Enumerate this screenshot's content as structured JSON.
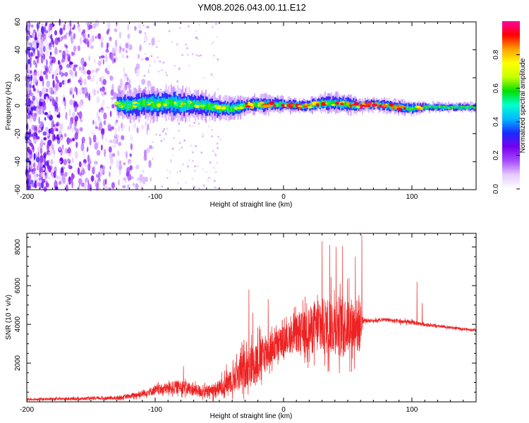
{
  "title": "YM08.2026.043.00.11.E12",
  "chart_data": [
    {
      "type": "heatmap",
      "name": "spectrogram",
      "xlabel": "Height of straight line (km)",
      "ylabel": "Frequency (Hz)",
      "xlim": [
        -200,
        150
      ],
      "ylim": [
        -60,
        60
      ],
      "xticks": [
        -200,
        -100,
        0,
        100
      ],
      "yticks": [
        60,
        40,
        20,
        0,
        -20,
        -40,
        -60
      ],
      "colorbar": {
        "label": "Normalized spectral amplitude",
        "range": [
          0,
          1
        ],
        "ticks": [
          "0.0",
          "0.2",
          "0.4",
          "0.6",
          "0.8"
        ],
        "colors": [
          "#ffffff",
          "#e6ccff",
          "#a64dff",
          "#7700ee",
          "#1a2bff",
          "#00b7ff",
          "#00ffd0",
          "#00e000",
          "#c8ff00",
          "#ffff00",
          "#ffa000",
          "#ff0000",
          "#ff00a0"
        ]
      },
      "ridge": {
        "x": [
          -130,
          -120,
          -110,
          -100,
          -90,
          -80,
          -70,
          -60,
          -50,
          -40,
          -30,
          -20,
          -10,
          0,
          10,
          20,
          30,
          40,
          50,
          60,
          70,
          80,
          90,
          100,
          110,
          150
        ],
        "center_hz": [
          1,
          0,
          2,
          1,
          2,
          1,
          1,
          0,
          -2,
          -2,
          0,
          1,
          1,
          1,
          0,
          0,
          2,
          2,
          1,
          0,
          1,
          0,
          -1,
          -2,
          -1,
          -1
        ],
        "halfwidth_hz": [
          6,
          6,
          7,
          7,
          7,
          7,
          6,
          6,
          5,
          5,
          4,
          4,
          4,
          3,
          3,
          3,
          4,
          4,
          4,
          3,
          3,
          3,
          3,
          3,
          2,
          2
        ]
      },
      "noise_region": [
        -200,
        -110
      ]
    },
    {
      "type": "line",
      "name": "snr",
      "xlabel": "Height of straight line (km)",
      "ylabel": "SNR (10 * v/v)",
      "xlim": [
        -200,
        150
      ],
      "ylim": [
        0,
        8700
      ],
      "xticks": [
        -200,
        -100,
        0,
        100
      ],
      "yticks": [
        2000,
        4000,
        6000,
        8000
      ],
      "color": "#ee2222",
      "envelope": {
        "x": [
          -200,
          -150,
          -130,
          -120,
          -110,
          -100,
          -90,
          -80,
          -70,
          -60,
          -50,
          -40,
          -30,
          -20,
          -10,
          0,
          10,
          20,
          30,
          40,
          50,
          60,
          62,
          70,
          80,
          90,
          100,
          110,
          120,
          150
        ],
        "mean": [
          130,
          170,
          200,
          280,
          420,
          600,
          700,
          800,
          600,
          500,
          700,
          1200,
          1700,
          2200,
          2700,
          3200,
          3500,
          3700,
          3900,
          4000,
          3950,
          3900,
          4200,
          4200,
          4250,
          4150,
          4100,
          4000,
          3900,
          3700
        ],
        "amp": [
          100,
          120,
          150,
          200,
          300,
          400,
          500,
          600,
          500,
          500,
          700,
          1200,
          1700,
          1900,
          1400,
          1200,
          1600,
          2000,
          2400,
          2600,
          2500,
          2300,
          200,
          150,
          150,
          200,
          200,
          150,
          120,
          100
        ]
      },
      "spikes": [
        {
          "x": -78,
          "y": 1850
        },
        {
          "x": -27,
          "y": 5800
        },
        {
          "x": -24,
          "y": 4600
        },
        {
          "x": -12,
          "y": 5300
        },
        {
          "x": 18,
          "y": 5100
        },
        {
          "x": 30,
          "y": 8300
        },
        {
          "x": 36,
          "y": 8100
        },
        {
          "x": 41,
          "y": 8000
        },
        {
          "x": 46,
          "y": 8050
        },
        {
          "x": 51,
          "y": 6400
        },
        {
          "x": 56,
          "y": 7500
        },
        {
          "x": 61,
          "y": 8600
        },
        {
          "x": 104,
          "y": 6200
        },
        {
          "x": 108,
          "y": 5100
        }
      ]
    }
  ]
}
